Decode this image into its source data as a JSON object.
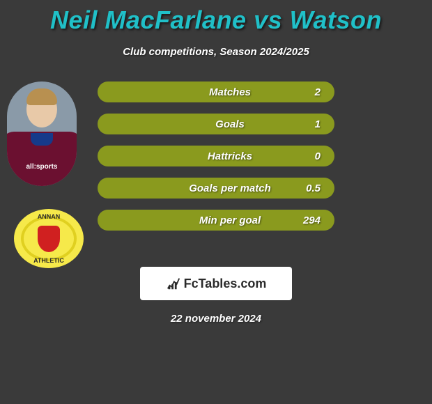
{
  "title": {
    "player1": "Neil MacFarlane",
    "vs": "vs",
    "player2": "Watson",
    "color": "#20c0c8"
  },
  "subtitle": "Club competitions, Season 2024/2025",
  "player": {
    "sponsor_text": "all:sports"
  },
  "club": {
    "text_top": "ANNAN",
    "text_bottom": "ATHLETIC"
  },
  "stats": [
    {
      "label": "Matches",
      "value": "2",
      "pill_color": "#8a9a1e",
      "right_blob_color": "#ffffff"
    },
    {
      "label": "Goals",
      "value": "1",
      "pill_color": "#8a9a1e",
      "right_blob_color": "#7a7a7a"
    },
    {
      "label": "Hattricks",
      "value": "0",
      "pill_color": "#8a9a1e",
      "right_blob_color": null
    },
    {
      "label": "Goals per match",
      "value": "0.5",
      "pill_color": "#8a9a1e",
      "right_blob_color": null
    },
    {
      "label": "Min per goal",
      "value": "294",
      "pill_color": "#8a9a1e",
      "right_blob_color": null
    }
  ],
  "branding": {
    "name": "FcTables.com"
  },
  "date": "22 november 2024",
  "colors": {
    "background": "#3a3a3a",
    "text": "#ffffff"
  }
}
